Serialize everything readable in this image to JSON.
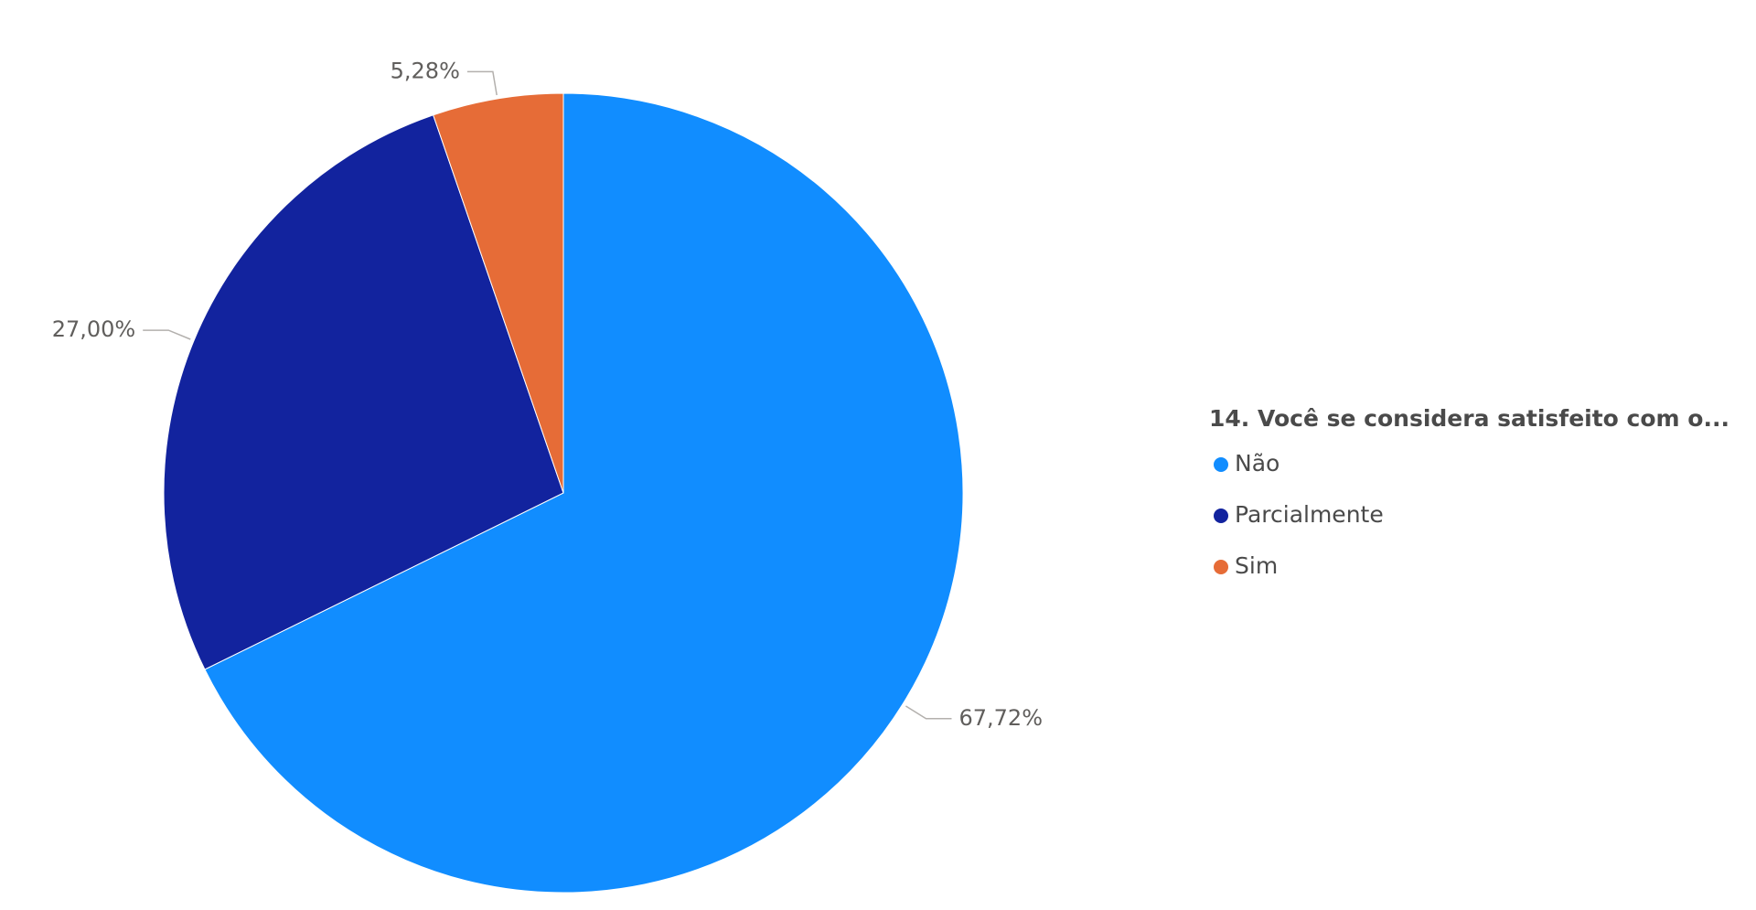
{
  "chart_data": {
    "type": "pie",
    "legend_title": "14. Você se considera satisfeito com o...",
    "categories": [
      "Não",
      "Parcialmente",
      "Sim"
    ],
    "values": [
      67.72,
      27.0,
      5.28
    ],
    "value_labels": [
      "67,72%",
      "27,00%",
      "5,28%"
    ],
    "colors": [
      "#118DFF",
      "#12239E",
      "#E66C37"
    ],
    "legend": "right"
  }
}
